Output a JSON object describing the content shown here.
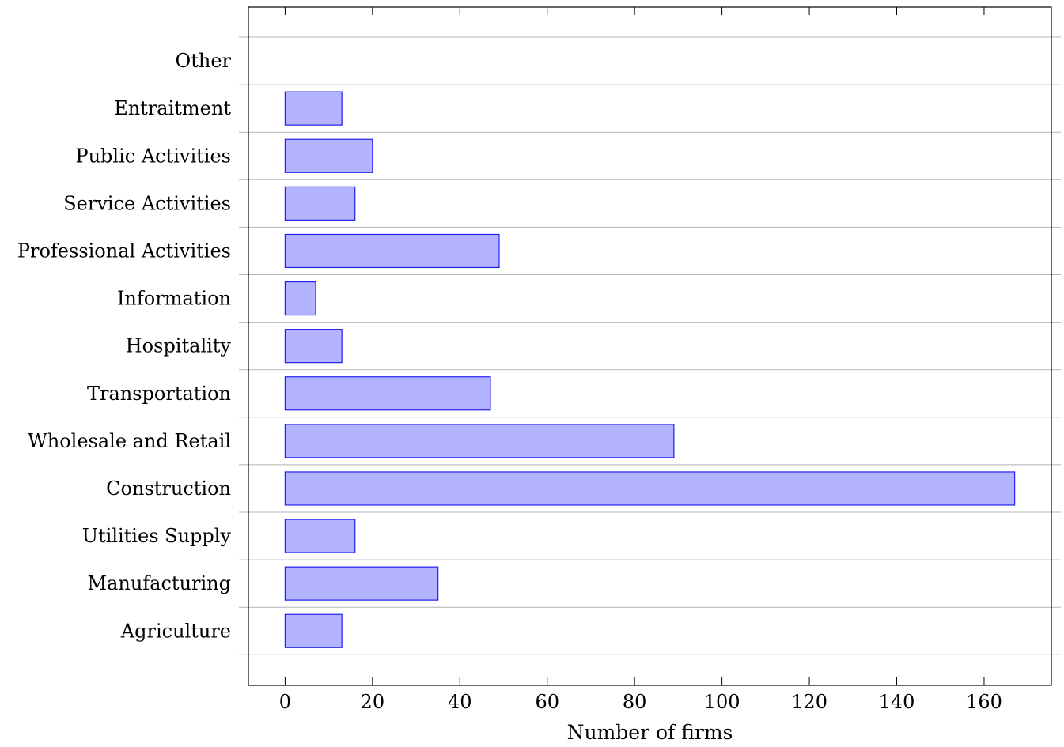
{
  "chart_data": {
    "type": "bar",
    "orientation": "horizontal",
    "title": "",
    "xlabel": "Number of firms",
    "ylabel": "",
    "categories": [
      "Agriculture",
      "Manufacturing",
      "Utilities Supply",
      "Construction",
      "Wholesale and Retail",
      "Transportation",
      "Hospitality",
      "Information",
      "Professional Activities",
      "Service Activities",
      "Public Activities",
      "Entraitment",
      "Other"
    ],
    "values": [
      13,
      35,
      16,
      167,
      89,
      47,
      13,
      7,
      49,
      16,
      20,
      13,
      0
    ],
    "xlim": [
      -8.4,
      175.4
    ],
    "x_ticks": [
      0,
      20,
      40,
      60,
      80,
      100,
      120,
      140,
      160
    ],
    "x_tick_labels": [
      "0",
      "20",
      "40",
      "60",
      "80",
      "100",
      "120",
      "140",
      "160"
    ],
    "grid": "horizontal",
    "legend": "none",
    "bar_fill": "#b3b3ff",
    "bar_stroke": "#2020ee",
    "grid_color": "#b4b4b4",
    "axis_color": "#000000"
  }
}
